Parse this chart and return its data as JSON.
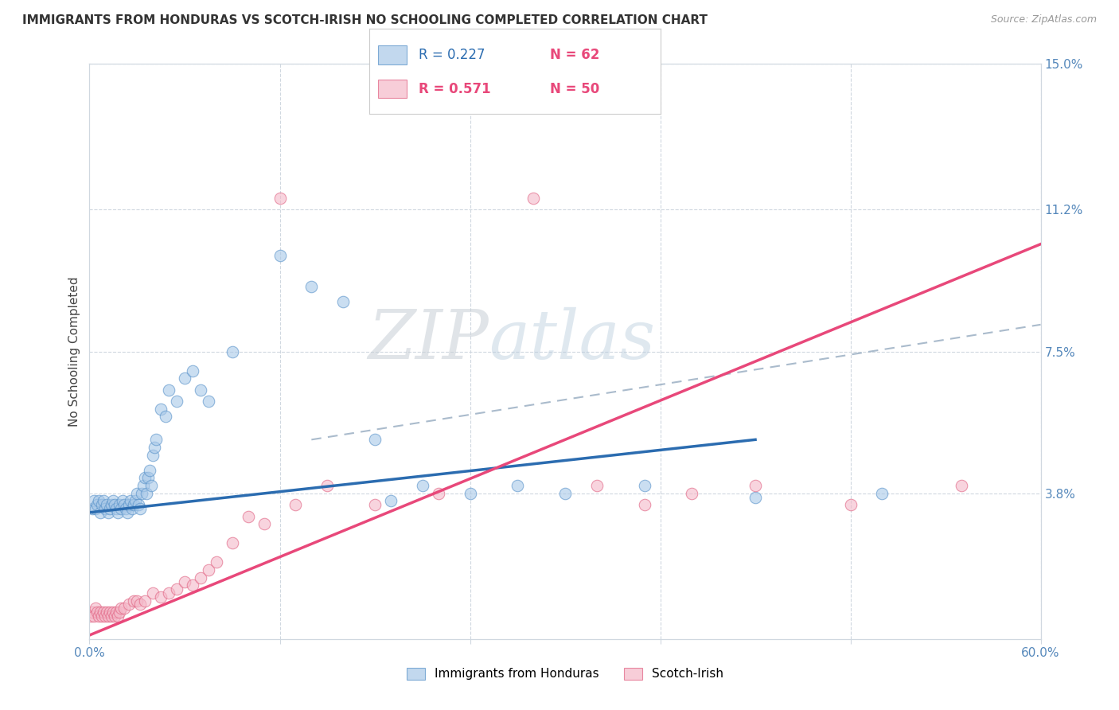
{
  "title": "IMMIGRANTS FROM HONDURAS VS SCOTCH-IRISH NO SCHOOLING COMPLETED CORRELATION CHART",
  "source": "Source: ZipAtlas.com",
  "ylabel": "No Schooling Completed",
  "xlim": [
    0.0,
    0.6
  ],
  "ylim": [
    0.0,
    0.15
  ],
  "series1_name": "Immigrants from Honduras",
  "series2_name": "Scotch-Irish",
  "blue_color": "#a8c8e8",
  "blue_edge_color": "#5590c8",
  "blue_line_color": "#2b6cb0",
  "pink_color": "#f4b8c8",
  "pink_edge_color": "#e06080",
  "pink_line_color": "#e8487a",
  "dash_color": "#aabbcc",
  "watermark_color": "#c8d8e8",
  "grid_color": "#d0d8e0",
  "background_color": "#ffffff",
  "title_color": "#333333",
  "source_color": "#999999",
  "tick_color": "#5588bb",
  "ylabel_color": "#444444",
  "legend_r1_color": "#2b6cb0",
  "legend_n1_color": "#e8487a",
  "legend_r2_color": "#e8487a",
  "legend_n2_color": "#e8487a",
  "blue_scatter_x": [
    0.002,
    0.003,
    0.004,
    0.005,
    0.006,
    0.007,
    0.008,
    0.009,
    0.01,
    0.011,
    0.012,
    0.013,
    0.014,
    0.015,
    0.016,
    0.017,
    0.018,
    0.019,
    0.02,
    0.021,
    0.022,
    0.023,
    0.024,
    0.025,
    0.026,
    0.027,
    0.028,
    0.029,
    0.03,
    0.031,
    0.032,
    0.033,
    0.034,
    0.035,
    0.036,
    0.037,
    0.038,
    0.039,
    0.04,
    0.041,
    0.042,
    0.045,
    0.048,
    0.05,
    0.055,
    0.06,
    0.065,
    0.07,
    0.075,
    0.09,
    0.12,
    0.14,
    0.16,
    0.18,
    0.19,
    0.21,
    0.24,
    0.27,
    0.3,
    0.35,
    0.42,
    0.5
  ],
  "blue_scatter_y": [
    0.034,
    0.036,
    0.034,
    0.035,
    0.036,
    0.033,
    0.035,
    0.036,
    0.034,
    0.035,
    0.033,
    0.034,
    0.035,
    0.036,
    0.035,
    0.034,
    0.033,
    0.035,
    0.034,
    0.036,
    0.035,
    0.034,
    0.033,
    0.035,
    0.036,
    0.034,
    0.035,
    0.036,
    0.038,
    0.035,
    0.034,
    0.038,
    0.04,
    0.042,
    0.038,
    0.042,
    0.044,
    0.04,
    0.048,
    0.05,
    0.052,
    0.06,
    0.058,
    0.065,
    0.062,
    0.068,
    0.07,
    0.065,
    0.062,
    0.075,
    0.1,
    0.092,
    0.088,
    0.052,
    0.036,
    0.04,
    0.038,
    0.04,
    0.038,
    0.04,
    0.037,
    0.038
  ],
  "pink_scatter_x": [
    0.001,
    0.002,
    0.003,
    0.004,
    0.005,
    0.006,
    0.007,
    0.008,
    0.009,
    0.01,
    0.011,
    0.012,
    0.013,
    0.014,
    0.015,
    0.016,
    0.017,
    0.018,
    0.019,
    0.02,
    0.022,
    0.025,
    0.028,
    0.03,
    0.032,
    0.035,
    0.04,
    0.045,
    0.05,
    0.055,
    0.06,
    0.065,
    0.07,
    0.075,
    0.08,
    0.09,
    0.1,
    0.11,
    0.12,
    0.13,
    0.15,
    0.18,
    0.22,
    0.28,
    0.32,
    0.35,
    0.38,
    0.42,
    0.48,
    0.55
  ],
  "pink_scatter_y": [
    0.006,
    0.007,
    0.006,
    0.008,
    0.007,
    0.006,
    0.007,
    0.006,
    0.007,
    0.006,
    0.007,
    0.006,
    0.007,
    0.006,
    0.007,
    0.006,
    0.007,
    0.006,
    0.007,
    0.008,
    0.008,
    0.009,
    0.01,
    0.01,
    0.009,
    0.01,
    0.012,
    0.011,
    0.012,
    0.013,
    0.015,
    0.014,
    0.016,
    0.018,
    0.02,
    0.025,
    0.032,
    0.03,
    0.115,
    0.035,
    0.04,
    0.035,
    0.038,
    0.115,
    0.04,
    0.035,
    0.038,
    0.04,
    0.035,
    0.04
  ],
  "blue_line_x0": 0.0,
  "blue_line_x1": 0.42,
  "blue_line_y0": 0.033,
  "blue_line_y1": 0.052,
  "pink_line_x0": 0.0,
  "pink_line_x1": 0.6,
  "pink_line_y0": 0.001,
  "pink_line_y1": 0.103,
  "dash_line_x0": 0.14,
  "dash_line_x1": 0.6,
  "dash_line_y0": 0.052,
  "dash_line_y1": 0.082,
  "figsize": [
    14.06,
    8.92
  ],
  "dpi": 100
}
